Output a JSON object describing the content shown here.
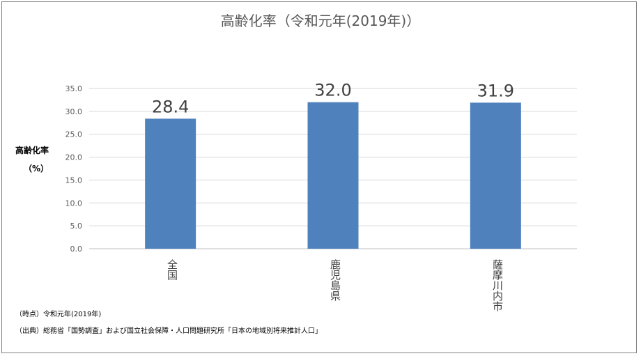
{
  "chart_data": {
    "type": "bar",
    "title": "高齢化率（令和元年(2019年)）",
    "ylabel_line1": "高齢化率",
    "ylabel_line2": "（%）",
    "xlabel": "",
    "categories": [
      "全国",
      "鹿児島県",
      "薩摩川内市"
    ],
    "values": [
      28.4,
      32.0,
      31.9
    ],
    "value_labels": [
      "28.4",
      "32.0",
      "31.9"
    ],
    "ylim": [
      0,
      35
    ],
    "yticks": [
      0.0,
      5.0,
      10.0,
      15.0,
      20.0,
      25.0,
      30.0,
      35.0
    ],
    "ytick_labels": [
      "0.0",
      "5.0",
      "10.0",
      "15.0",
      "20.0",
      "25.0",
      "30.0",
      "35.0"
    ],
    "grid": true,
    "bar_color": "#4f81bd",
    "grid_color": "#d9d9d9"
  },
  "notes": {
    "time": "（時点）令和元年(2019年)",
    "source": "（出典）総務省「国勢調査」および国立社会保障・人口問題研究所「日本の地域別将来推計人口」"
  }
}
